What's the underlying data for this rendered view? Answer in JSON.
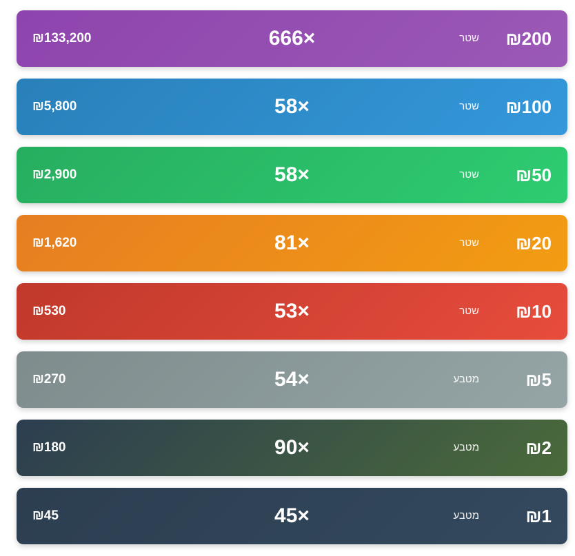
{
  "rows": [
    {
      "denomination": "₪200",
      "type": "שטר",
      "count": "666×",
      "total": "₪133,200",
      "color_from": "#8e44ad",
      "color_to": "#9b59b6"
    },
    {
      "denomination": "₪100",
      "type": "שטר",
      "count": "58×",
      "total": "₪5,800",
      "color_from": "#2980b9",
      "color_to": "#3498db"
    },
    {
      "denomination": "₪50",
      "type": "שטר",
      "count": "58×",
      "total": "₪2,900",
      "color_from": "#27ae60",
      "color_to": "#2ecc71"
    },
    {
      "denomination": "₪20",
      "type": "שטר",
      "count": "81×",
      "total": "₪1,620",
      "color_from": "#e67e22",
      "color_to": "#f39c12"
    },
    {
      "denomination": "₪10",
      "type": "שטר",
      "count": "53×",
      "total": "₪530",
      "color_from": "#c0392b",
      "color_to": "#e74c3c"
    },
    {
      "denomination": "₪5",
      "type": "מטבע",
      "count": "54×",
      "total": "₪270",
      "color_from": "#7f8c8d",
      "color_to": "#95a5a6"
    },
    {
      "denomination": "₪2",
      "type": "מטבע",
      "count": "90×",
      "total": "₪180",
      "color_from": "#2c3e50",
      "color_to": "#4a6a3a"
    },
    {
      "denomination": "₪1",
      "type": "מטבע",
      "count": "45×",
      "total": "₪45",
      "color_from": "#2c3e50",
      "color_to": "#34495e"
    }
  ]
}
